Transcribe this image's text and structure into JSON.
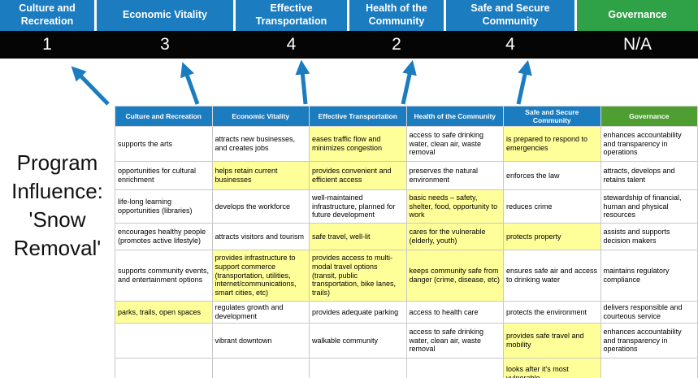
{
  "colors": {
    "pillar_blue": "#1b7cc0",
    "pillar_green": "#2fa147",
    "matrix_green": "#4f9e31",
    "score_bar_bg": "#050505",
    "score_text": "#ffffff",
    "highlight_yellow": "#ffff99",
    "arrow_blue": "#1b7cc0"
  },
  "title": {
    "text": "Program Influence: 'Snow Removal'",
    "lines": [
      "Program",
      "Influence:",
      "'Snow",
      "Removal'"
    ]
  },
  "pillars": [
    {
      "label": "Culture and Recreation",
      "score": "1",
      "theme": "blue"
    },
    {
      "label": "Economic Vitality",
      "score": "3",
      "theme": "blue"
    },
    {
      "label": "Effective Transportation",
      "score": "4",
      "theme": "blue"
    },
    {
      "label": "Health of the Community",
      "score": "2",
      "theme": "blue"
    },
    {
      "label": "Safe and Secure Community",
      "score": "4",
      "theme": "blue"
    },
    {
      "label": "Governance",
      "score": "N/A",
      "theme": "green"
    }
  ],
  "matrix": {
    "headers": [
      {
        "label": "Culture and Recreation",
        "theme": "blue"
      },
      {
        "label": "Economic Vitality",
        "theme": "blue"
      },
      {
        "label": "Effective Transportation",
        "theme": "blue"
      },
      {
        "label": "Health of the Community",
        "theme": "blue"
      },
      {
        "label": "Safe and Secure Community",
        "theme": "blue"
      },
      {
        "label": "Governance",
        "theme": "green"
      }
    ],
    "rows": [
      {
        "cells": [
          {
            "text": "supports the arts",
            "highlight": false
          },
          {
            "text": "attracts new businesses, and creates jobs",
            "highlight": false
          },
          {
            "text": "eases traffic flow and minimizes congestion",
            "highlight": true
          },
          {
            "text": "access to safe drinking water, clean air, waste removal",
            "highlight": false
          },
          {
            "text": "is prepared to respond to emergencies",
            "highlight": true
          },
          {
            "text": "enhances accountability and transparency in operations",
            "highlight": false
          }
        ]
      },
      {
        "cells": [
          {
            "text": "opportunities for cultural enrichment",
            "highlight": false
          },
          {
            "text": "helps retain current businesses",
            "highlight": true
          },
          {
            "text": "provides convenient and efficient access",
            "highlight": true
          },
          {
            "text": "preserves the natural environment",
            "highlight": false
          },
          {
            "text": "enforces the law",
            "highlight": false
          },
          {
            "text": "attracts, develops and retains talent",
            "highlight": false
          }
        ]
      },
      {
        "cells": [
          {
            "text": "life-long learning opportunities (libraries)",
            "highlight": false
          },
          {
            "text": "develops the workforce",
            "highlight": false
          },
          {
            "text": "well-maintained infrastructure, planned for future development",
            "highlight": false
          },
          {
            "text": "basic needs – safety, shelter, food, opportunity to work",
            "highlight": true
          },
          {
            "text": "reduces crime",
            "highlight": false
          },
          {
            "text": "stewardship of financial, human and physical resources",
            "highlight": false
          }
        ]
      },
      {
        "cells": [
          {
            "text": "encourages healthy people (promotes active lifestyle)",
            "highlight": false
          },
          {
            "text": "attracts visitors and tourism",
            "highlight": false
          },
          {
            "text": "safe travel, well-lit",
            "highlight": true
          },
          {
            "text": "cares for the vulnerable (elderly, youth)",
            "highlight": true
          },
          {
            "text": "protects property",
            "highlight": true
          },
          {
            "text": "assists and supports decision makers",
            "highlight": false
          }
        ]
      },
      {
        "cells": [
          {
            "text": "supports community events, and entertainment options",
            "highlight": false
          },
          {
            "text": "provides infrastructure to support commerce (transportation, utilities, internet/communications, smart cities, etc)",
            "highlight": true
          },
          {
            "text": "provides access to multi-modal travel options (transit, public transportation, bike lanes, trails)",
            "highlight": true
          },
          {
            "text": "keeps community safe from danger (crime, disease, etc)",
            "highlight": true
          },
          {
            "text": "ensures safe air and access to drinking water",
            "highlight": false
          },
          {
            "text": "maintains regulatory compliance",
            "highlight": false
          }
        ]
      },
      {
        "cells": [
          {
            "text": "parks, trails, open spaces",
            "highlight": true
          },
          {
            "text": "regulates growth and development",
            "highlight": false
          },
          {
            "text": "provides adequate parking",
            "highlight": false
          },
          {
            "text": "access to health care",
            "highlight": false
          },
          {
            "text": "protects the environment",
            "highlight": false
          },
          {
            "text": "delivers responsible and courteous service",
            "highlight": false
          }
        ]
      },
      {
        "cells": [
          {
            "text": "",
            "highlight": false
          },
          {
            "text": "vibrant downtown",
            "highlight": false
          },
          {
            "text": "walkable community",
            "highlight": false
          },
          {
            "text": "access to safe drinking water, clean air, waste removal",
            "highlight": false
          },
          {
            "text": "provides safe travel and mobility",
            "highlight": true
          },
          {
            "text": "enhances accountability and transparency in operations",
            "highlight": false
          }
        ]
      },
      {
        "cells": [
          {
            "text": "",
            "highlight": false
          },
          {
            "text": "",
            "highlight": false
          },
          {
            "text": "",
            "highlight": false
          },
          {
            "text": "",
            "highlight": false
          },
          {
            "text": "looks after it's most vulnerable",
            "highlight": true
          },
          {
            "text": "",
            "highlight": false
          }
        ]
      }
    ]
  }
}
